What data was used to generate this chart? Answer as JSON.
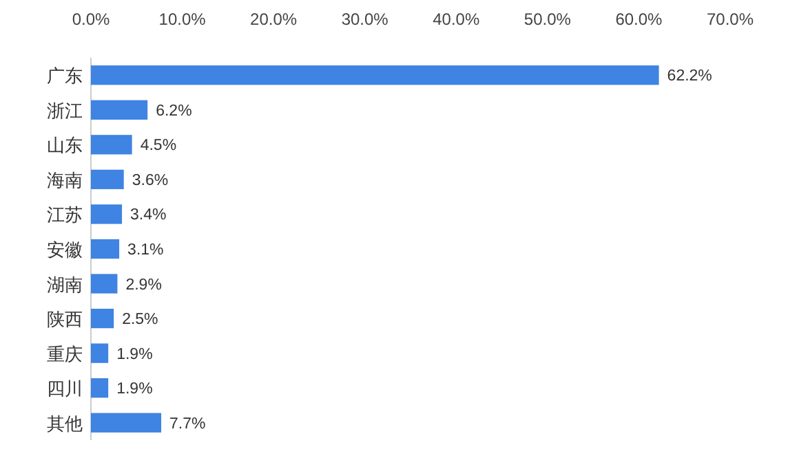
{
  "chart_data": {
    "type": "bar",
    "orientation": "horizontal",
    "categories": [
      "广东",
      "浙江",
      "山东",
      "海南",
      "江苏",
      "安徽",
      "湖南",
      "陕西",
      "重庆",
      "四川",
      "其他"
    ],
    "values": [
      62.2,
      6.2,
      4.5,
      3.6,
      3.4,
      3.1,
      2.9,
      2.5,
      1.9,
      1.9,
      7.7
    ],
    "value_labels": [
      "62.2%",
      "6.2%",
      "4.5%",
      "3.6%",
      "3.4%",
      "3.1%",
      "2.9%",
      "2.5%",
      "1.9%",
      "1.9%",
      "7.7%"
    ],
    "color": "#3f83e3",
    "xlim": [
      0,
      70
    ],
    "xticks": [
      {
        "value": 0,
        "label": "0.0%"
      },
      {
        "value": 10,
        "label": "10.0%"
      },
      {
        "value": 20,
        "label": "20.0%"
      },
      {
        "value": 30,
        "label": "30.0%"
      },
      {
        "value": 40,
        "label": "40.0%"
      },
      {
        "value": 50,
        "label": "50.0%"
      },
      {
        "value": 60,
        "label": "60.0%"
      },
      {
        "value": 70,
        "label": "70.0%"
      }
    ],
    "grid": false
  }
}
